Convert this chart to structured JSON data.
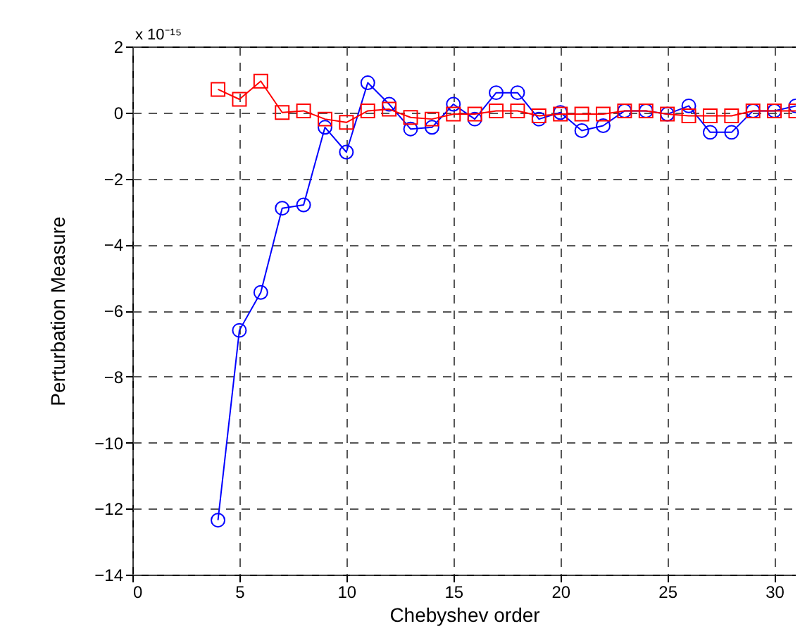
{
  "chart_data": {
    "type": "line",
    "xlabel": "Chebyshev order",
    "ylabel": "Perturbation Measure",
    "annotations": [
      "x 10⁻¹⁵"
    ],
    "x": [
      4,
      5,
      6,
      7,
      8,
      9,
      10,
      11,
      12,
      13,
      14,
      15,
      16,
      17,
      18,
      19,
      20,
      21,
      22,
      23,
      24,
      25,
      26,
      27,
      28,
      29,
      30,
      31
    ],
    "series": [
      {
        "color": "#0000ff",
        "marker": "circle",
        "values": [
          -12.35,
          -6.6,
          -5.45,
          -2.9,
          -2.8,
          -0.45,
          -1.2,
          0.9,
          0.25,
          -0.5,
          -0.45,
          0.25,
          -0.2,
          0.6,
          0.6,
          -0.2,
          0,
          -0.55,
          -0.4,
          0.05,
          0.05,
          -0.05,
          0.2,
          -0.6,
          -0.6,
          0.05,
          0.05,
          0.2
        ]
      },
      {
        "color": "#ff0000",
        "marker": "square",
        "values": [
          0.7,
          0.4,
          0.95,
          0,
          0.05,
          -0.2,
          -0.3,
          0.05,
          0.1,
          -0.15,
          -0.2,
          -0.05,
          -0.05,
          0.05,
          0.05,
          -0.1,
          -0.05,
          -0.05,
          -0.05,
          0.05,
          0.05,
          -0.05,
          -0.1,
          -0.1,
          -0.1,
          0.05,
          0.05,
          0.05
        ]
      }
    ],
    "xlim": [
      0,
      31
    ],
    "xticks": [
      0,
      5,
      10,
      15,
      20,
      25,
      30
    ],
    "ylim": [
      -14,
      2
    ],
    "yticks": [
      -14,
      -12,
      -10,
      -8,
      -6,
      -4,
      -2,
      0,
      2
    ],
    "grid": true,
    "line_style": "solid"
  }
}
